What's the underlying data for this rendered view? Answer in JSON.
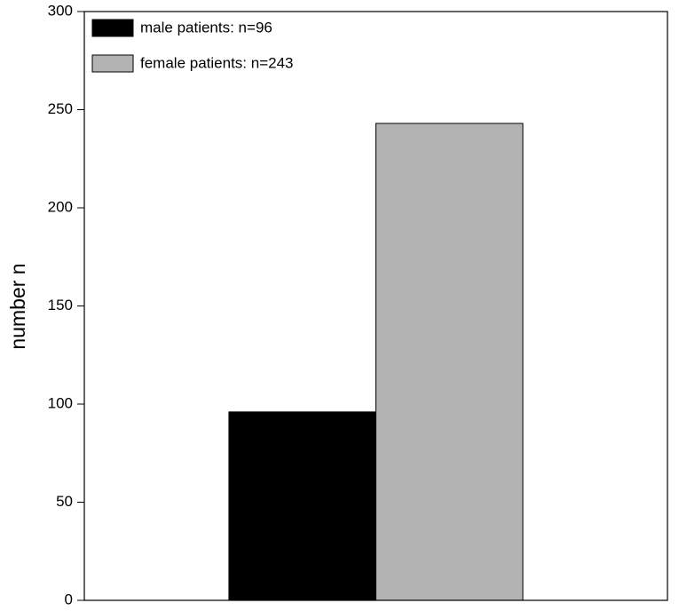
{
  "chart_data": {
    "type": "bar",
    "ylabel": "number n",
    "categories": [
      null
    ],
    "series": [
      {
        "name": "male patients: n=96",
        "color": "#000000",
        "values": [
          96
        ]
      },
      {
        "name": "female patients: n=243",
        "color": "#b3b3b3",
        "values": [
          243
        ]
      }
    ],
    "ylim": [
      0,
      300
    ],
    "yticks": [
      0,
      50,
      100,
      150,
      200,
      250,
      300
    ],
    "grid": false,
    "legend": "upper left"
  }
}
